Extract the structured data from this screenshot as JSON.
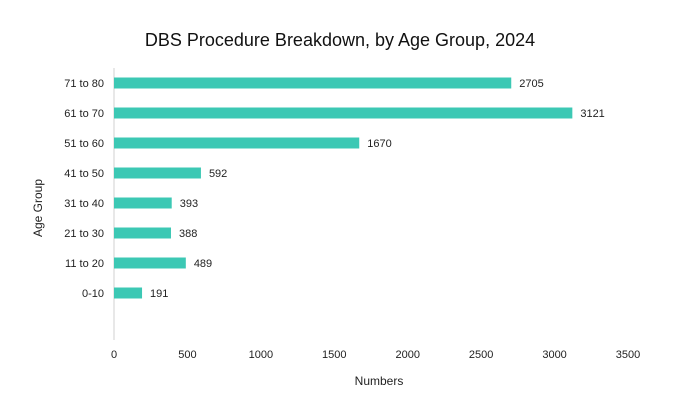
{
  "chart_data": {
    "type": "bar",
    "orientation": "horizontal",
    "title": "DBS Procedure Breakdown, by Age Group, 2024",
    "xlabel": "Numbers",
    "ylabel": "Age Group",
    "categories": [
      "71 to 80",
      "61 to 70",
      "51 to 60",
      "41 to 50",
      "31 to 40",
      "21 to 30",
      "11 to 20",
      "0-10"
    ],
    "values": [
      2705,
      3121,
      1670,
      592,
      393,
      388,
      489,
      191
    ],
    "xlim": [
      0,
      3500
    ],
    "xticks": [
      0,
      500,
      1000,
      1500,
      2000,
      2500,
      3000,
      3500
    ],
    "grid": false,
    "legend": "none",
    "data_labels": true,
    "colors": {
      "bar": "#3cc8b4",
      "axis": "#d0d0d0"
    }
  }
}
